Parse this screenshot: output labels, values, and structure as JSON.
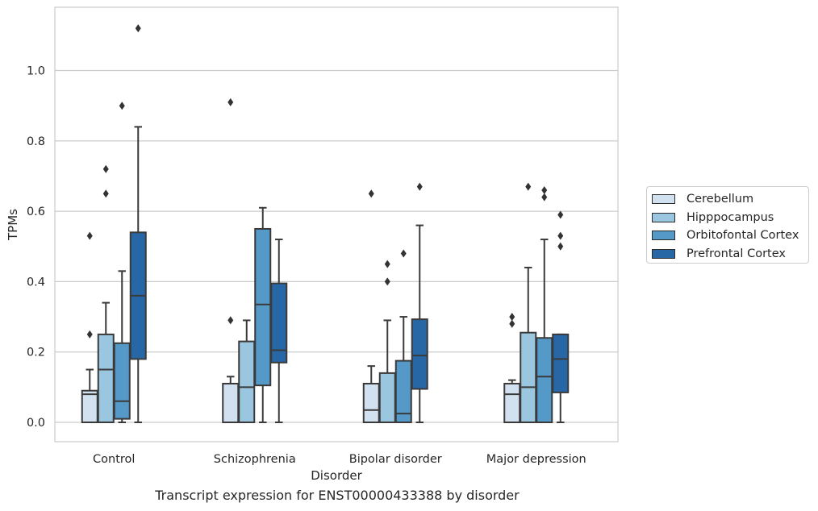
{
  "caption": "Transcript expression for ENST00000433388 by disorder",
  "chart_data": {
    "type": "box",
    "xlabel": "Disorder",
    "ylabel": "TPMs",
    "ylim": [
      -0.055,
      1.18
    ],
    "yticks": [
      "0.0",
      "0.2",
      "0.4",
      "0.6",
      "0.8",
      "1.0"
    ],
    "grid": true,
    "legend_position": "right",
    "categories": [
      "Control",
      "Schizophrenia",
      "Bipolar disorder",
      "Major depression"
    ],
    "series": [
      {
        "name": "Cerebellum",
        "color": "#d1e1f0",
        "boxes": [
          {
            "whislo": 0,
            "q1": 0,
            "med": 0.08,
            "q3": 0.09,
            "whishi": 0.15,
            "fliers": [
              0.25,
              0.53
            ]
          },
          {
            "whislo": 0,
            "q1": 0,
            "med": 0.11,
            "q3": 0.11,
            "whishi": 0.13,
            "fliers": [
              0.29,
              0.91
            ]
          },
          {
            "whislo": 0,
            "q1": 0,
            "med": 0.035,
            "q3": 0.11,
            "whishi": 0.16,
            "fliers": [
              0.65
            ]
          },
          {
            "whislo": 0,
            "q1": 0,
            "med": 0.08,
            "q3": 0.11,
            "whishi": 0.12,
            "fliers": [
              0.28,
              0.3
            ]
          }
        ]
      },
      {
        "name": "Hipppocampus",
        "color": "#9ac7df",
        "boxes": [
          {
            "whislo": 0,
            "q1": 0,
            "med": 0.15,
            "q3": 0.25,
            "whishi": 0.34,
            "fliers": [
              0.65,
              0.72
            ]
          },
          {
            "whislo": 0,
            "q1": 0,
            "med": 0.1,
            "q3": 0.23,
            "whishi": 0.29,
            "fliers": []
          },
          {
            "whislo": 0,
            "q1": 0,
            "med": 0.0,
            "q3": 0.14,
            "whishi": 0.29,
            "fliers": [
              0.4,
              0.45
            ]
          },
          {
            "whislo": 0,
            "q1": 0,
            "med": 0.1,
            "q3": 0.255,
            "whishi": 0.44,
            "fliers": [
              0.67
            ]
          }
        ]
      },
      {
        "name": "Orbitofontal Cortex",
        "color": "#5599c8",
        "boxes": [
          {
            "whislo": 0,
            "q1": 0.01,
            "med": 0.06,
            "q3": 0.225,
            "whishi": 0.43,
            "fliers": [
              0.9
            ]
          },
          {
            "whislo": 0,
            "q1": 0.105,
            "med": 0.335,
            "q3": 0.55,
            "whishi": 0.61,
            "fliers": []
          },
          {
            "whislo": 0,
            "q1": 0,
            "med": 0.025,
            "q3": 0.175,
            "whishi": 0.3,
            "fliers": [
              0.48
            ]
          },
          {
            "whislo": 0,
            "q1": 0,
            "med": 0.13,
            "q3": 0.24,
            "whishi": 0.52,
            "fliers": [
              0.64,
              0.66
            ]
          }
        ]
      },
      {
        "name": "Prefrontal Cortex",
        "color": "#2767a6",
        "boxes": [
          {
            "whislo": 0,
            "q1": 0.18,
            "med": 0.36,
            "q3": 0.54,
            "whishi": 0.84,
            "fliers": [
              1.12
            ]
          },
          {
            "whislo": 0,
            "q1": 0.17,
            "med": 0.205,
            "q3": 0.395,
            "whishi": 0.52,
            "fliers": []
          },
          {
            "whislo": 0,
            "q1": 0.095,
            "med": 0.19,
            "q3": 0.293,
            "whishi": 0.56,
            "fliers": [
              0.67
            ]
          },
          {
            "whislo": 0,
            "q1": 0.085,
            "med": 0.18,
            "q3": 0.25,
            "whishi": 0.25,
            "fliers": [
              0.5,
              0.53,
              0.59
            ]
          }
        ]
      }
    ]
  }
}
